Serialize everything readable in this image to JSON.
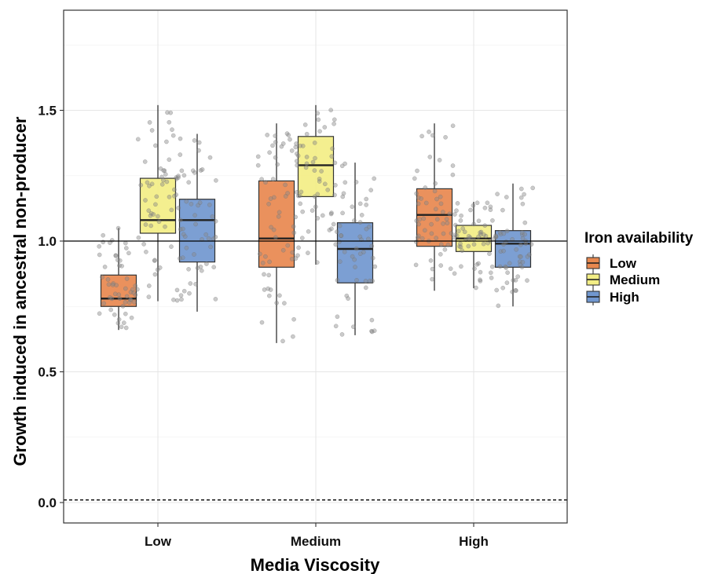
{
  "chart_data": {
    "type": "box",
    "title": "",
    "xlabel": "Media Viscosity",
    "ylabel": "Growth induced in ancestral non-producer",
    "categories": [
      "Low",
      "Medium",
      "High"
    ],
    "ylim": [
      -0.08,
      1.9
    ],
    "yticks": [
      0.0,
      0.5,
      1.0,
      1.5
    ],
    "ytick_labels": [
      "0.0",
      "0.5",
      "1.0",
      "1.5"
    ],
    "grid": true,
    "legend": {
      "title": "Iron availability",
      "position": "right",
      "items": [
        "Low",
        "Medium",
        "High"
      ]
    },
    "reference_lines": [
      {
        "y": 1.0,
        "style": "solid"
      },
      {
        "y": 0.01,
        "style": "dashed"
      }
    ],
    "series": [
      {
        "name": "Low",
        "color": "#E8884F",
        "boxes": [
          {
            "category": "Low",
            "min": 0.66,
            "q1": 0.75,
            "median": 0.78,
            "q3": 0.87,
            "max": 1.05
          },
          {
            "category": "Medium",
            "min": 0.61,
            "q1": 0.9,
            "median": 1.01,
            "q3": 1.23,
            "max": 1.45
          },
          {
            "category": "High",
            "min": 0.81,
            "q1": 0.98,
            "median": 1.1,
            "q3": 1.2,
            "max": 1.45
          }
        ]
      },
      {
        "name": "Medium",
        "color": "#F3EE85",
        "boxes": [
          {
            "category": "Low",
            "min": 0.77,
            "q1": 1.03,
            "median": 1.08,
            "q3": 1.24,
            "max": 1.52
          },
          {
            "category": "Medium",
            "min": 0.91,
            "q1": 1.17,
            "median": 1.29,
            "q3": 1.4,
            "max": 1.52
          },
          {
            "category": "High",
            "min": 0.82,
            "q1": 0.96,
            "median": 1.01,
            "q3": 1.06,
            "max": 1.15
          }
        ]
      },
      {
        "name": "High",
        "color": "#7197CF",
        "boxes": [
          {
            "category": "Low",
            "min": 0.73,
            "q1": 0.92,
            "median": 1.08,
            "q3": 1.16,
            "max": 1.41
          },
          {
            "category": "Medium",
            "min": 0.64,
            "q1": 0.84,
            "median": 0.97,
            "q3": 1.07,
            "max": 1.3
          },
          {
            "category": "High",
            "min": 0.75,
            "q1": 0.9,
            "median": 0.99,
            "q3": 1.04,
            "max": 1.22
          }
        ]
      }
    ]
  }
}
